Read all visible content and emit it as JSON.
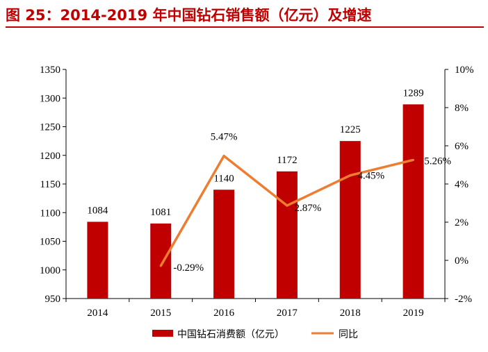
{
  "header": {
    "title": "图 25：2014-2019 年中国钻石销售额（亿元）及增速"
  },
  "colors": {
    "bar": "#c00000",
    "line": "#ed7d31",
    "title": "#c00000"
  },
  "chart_data": {
    "type": "bar",
    "categories": [
      "2014",
      "2015",
      "2016",
      "2017",
      "2018",
      "2019"
    ],
    "series": [
      {
        "name": "中国钻石消费额（亿元）",
        "type": "bar",
        "axis": "left",
        "values": [
          1084,
          1081,
          1140,
          1172,
          1225,
          1289
        ],
        "labels": [
          "1084",
          "1081",
          "1140",
          "1172",
          "1225",
          "1289"
        ]
      },
      {
        "name": "同比",
        "type": "line",
        "axis": "right",
        "values": [
          null,
          -0.29,
          5.47,
          2.87,
          4.45,
          5.26
        ],
        "labels": [
          "",
          "-0.29%",
          "5.47%",
          "2.87%",
          "4.45%",
          "5.26%"
        ]
      }
    ],
    "y_left": {
      "min": 950,
      "max": 1350,
      "ticks": [
        "950",
        "1000",
        "1050",
        "1100",
        "1150",
        "1200",
        "1250",
        "1300",
        "1350"
      ]
    },
    "y_right": {
      "min": -2,
      "max": 10,
      "ticks": [
        "-2%",
        "0%",
        "2%",
        "4%",
        "6%",
        "8%",
        "10%"
      ]
    },
    "grid": false,
    "legend": "bottom"
  }
}
